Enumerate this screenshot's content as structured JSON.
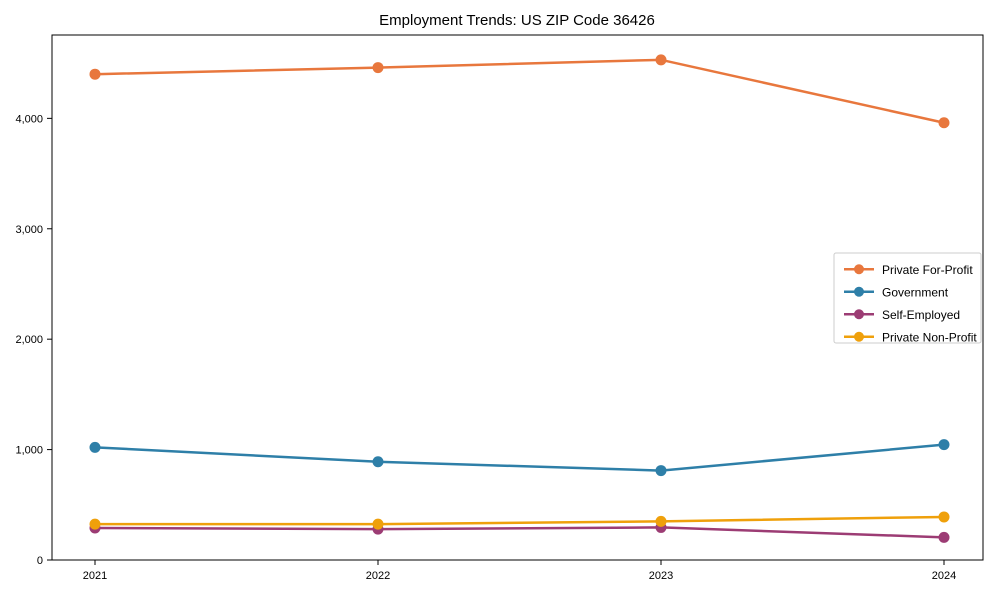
{
  "figure": {
    "title": "Employment Trends: US ZIP Code 36426"
  },
  "chart_data": {
    "type": "line",
    "title": "Employment Trends: US ZIP Code 36426",
    "xlabel": "",
    "ylabel": "",
    "grid": false,
    "legend_position": "center-right",
    "categories": [
      "2021",
      "2022",
      "2023",
      "2024"
    ],
    "y_ticks": [
      0,
      1000,
      2000,
      3000,
      4000
    ],
    "y_tick_labels": [
      "0",
      "1,000",
      "2,000",
      "3,000",
      "4,000"
    ],
    "ylim": [
      0,
      4755
    ],
    "series": [
      {
        "name": "Private For-Profit",
        "color": "#e8773d",
        "values": [
          4400,
          4460,
          4530,
          3960
        ]
      },
      {
        "name": "Government",
        "color": "#2e7fa8",
        "values": [
          1020,
          890,
          810,
          1045
        ]
      },
      {
        "name": "Self-Employed",
        "color": "#9c3c74",
        "values": [
          290,
          280,
          295,
          205
        ]
      },
      {
        "name": "Private Non-Profit",
        "color": "#efa00b",
        "values": [
          325,
          325,
          350,
          390
        ]
      }
    ],
    "style": {
      "spine_color": "#000000",
      "tick_color": "#000000",
      "legend_border_color": "#cccccc",
      "background": "#ffffff"
    }
  }
}
